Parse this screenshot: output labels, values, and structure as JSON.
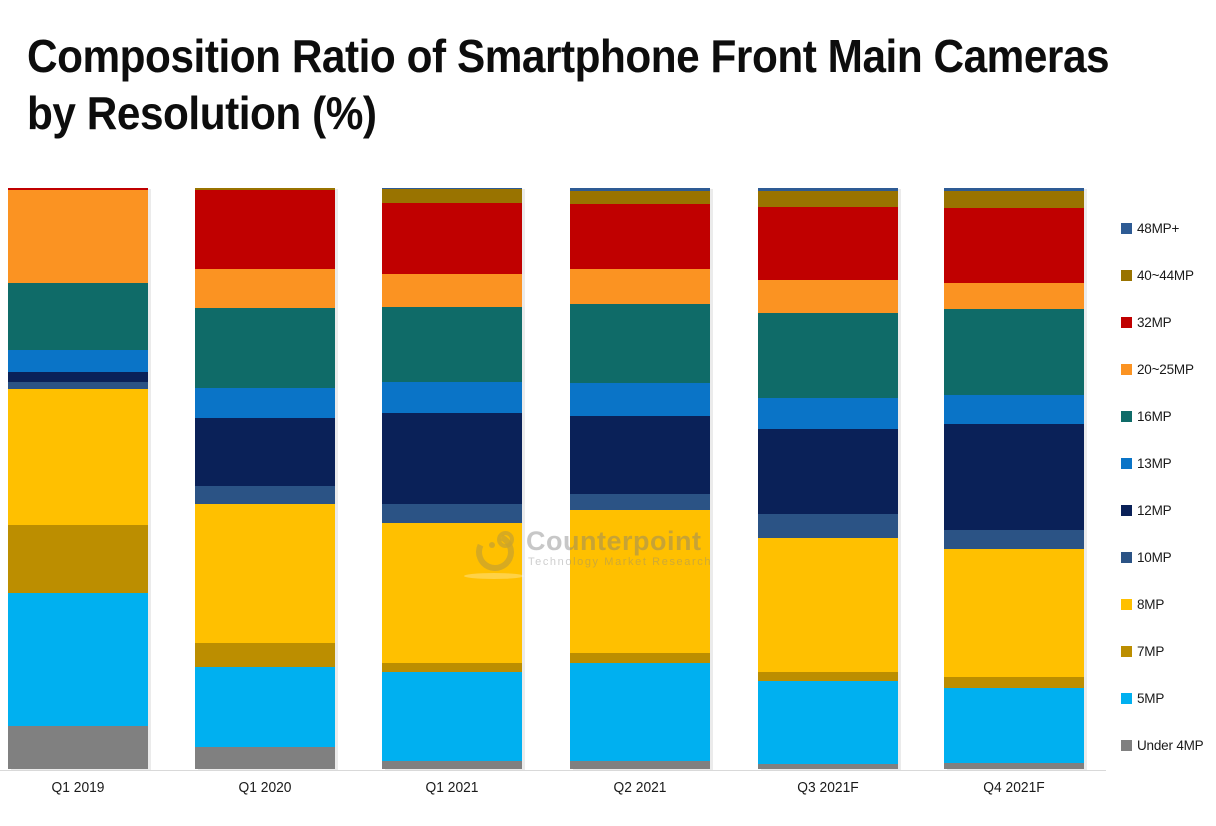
{
  "title": {
    "line1": "Composition Ratio of Smartphone Front Main Cameras",
    "line2": "by Resolution (%)"
  },
  "watermark": {
    "name": "Counterpoint",
    "tagline": "Technology Market Research"
  },
  "chart_data": {
    "type": "bar",
    "subtype": "stacked-100-percent",
    "title": "Composition Ratio of Smartphone Front Main Cameras by Resolution (%)",
    "unit": "%",
    "ylim": [
      0,
      100
    ],
    "grid": false,
    "legend_position": "right",
    "axis_line_color": "#d9d9d9",
    "categories": [
      "Q1 2019",
      "Q1 2020",
      "Q1 2021",
      "Q2 2021",
      "Q3 2021F",
      "Q4 2021F"
    ],
    "series_note": "series listed bottom-to-top of each stacked bar; legend shows reverse order (top segment first)",
    "series": [
      {
        "name": "Under 4MP",
        "color": "#808080",
        "values": [
          7.4,
          3.8,
          1.4,
          1.4,
          0.9,
          1.0
        ]
      },
      {
        "name": "5MP",
        "color": "#00B0F0",
        "values": [
          22.9,
          13.8,
          15.3,
          16.9,
          14.3,
          12.9
        ]
      },
      {
        "name": "7MP",
        "color": "#BC8E00",
        "values": [
          11.7,
          4.1,
          1.5,
          1.7,
          1.5,
          1.9
        ]
      },
      {
        "name": "8MP",
        "color": "#FFC000",
        "values": [
          23.4,
          23.9,
          24.1,
          24.6,
          23.1,
          22.0
        ]
      },
      {
        "name": "10MP",
        "color": "#2B5385",
        "values": [
          1.2,
          3.1,
          3.3,
          2.8,
          4.1,
          3.4
        ]
      },
      {
        "name": "12MP",
        "color": "#0A2158",
        "values": [
          1.7,
          11.7,
          15.7,
          13.4,
          14.6,
          18.1
        ]
      },
      {
        "name": "13MP",
        "color": "#0A74C7",
        "values": [
          3.8,
          5.2,
          5.3,
          5.7,
          5.3,
          5.0
        ]
      },
      {
        "name": "16MP",
        "color": "#0F6B68",
        "values": [
          11.5,
          13.8,
          12.9,
          13.6,
          14.6,
          14.8
        ]
      },
      {
        "name": "20~25MP",
        "color": "#FB9322",
        "values": [
          16.0,
          6.7,
          5.7,
          6.0,
          5.7,
          4.6
        ]
      },
      {
        "name": "32MP",
        "color": "#C00000",
        "values": [
          0.4,
          13.6,
          12.2,
          11.2,
          12.6,
          12.9
        ]
      },
      {
        "name": "40~44MP",
        "color": "#997300",
        "values": [
          0,
          0.3,
          2.4,
          2.2,
          2.8,
          2.9
        ]
      },
      {
        "name": "48MP+",
        "color": "#2E5B94",
        "values": [
          0,
          0,
          0.2,
          0.5,
          0.5,
          0.5
        ]
      }
    ]
  }
}
